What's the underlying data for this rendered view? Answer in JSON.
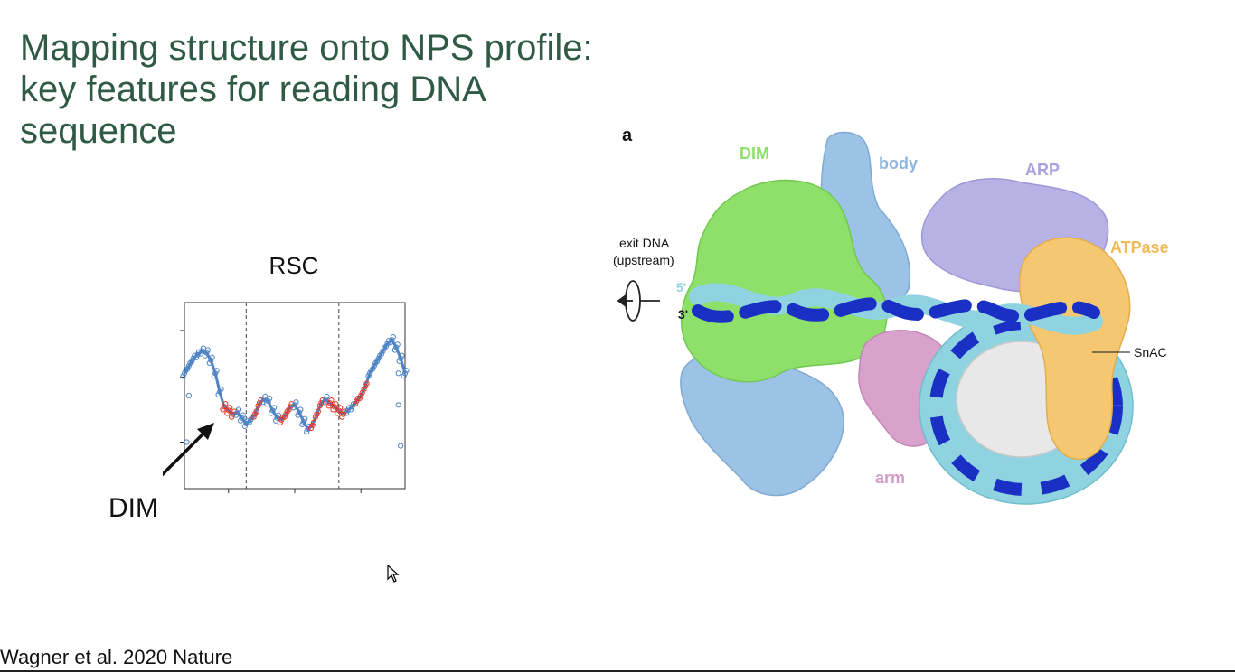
{
  "slide": {
    "title_lines": [
      "Mapping structure onto NPS profile:",
      "key features for reading DNA",
      "sequence"
    ],
    "citation": "Wagner et al. 2020 Nature"
  },
  "chart": {
    "title": "RSC",
    "annotation": "DIM"
  },
  "figure": {
    "panel_label": "a",
    "labels": {
      "dim": "DIM",
      "body": "body",
      "arp": "ARP",
      "atpase": "ATPase",
      "arm": "arm",
      "snac": "SnAC",
      "exit_dna_1": "exit DNA",
      "exit_dna_2": "(upstream)",
      "five_prime": "5'",
      "three_prime": "3'"
    },
    "colors": {
      "dim": "#8ee06a",
      "body": "#9cc3e6",
      "arp": "#b7b1e6",
      "atpase": "#f4c770",
      "arm": "#d8a2cc",
      "dna_dark": "#1a2fc4",
      "dna_light": "#8fd3e0",
      "core": "#e8e8e8"
    }
  },
  "chart_data": {
    "type": "scatter",
    "title": "RSC",
    "xlabel": "",
    "ylabel": "",
    "xlim": [
      0,
      100
    ],
    "ylim": [
      0,
      100
    ],
    "segments_marked": [
      [
        17,
        23
      ],
      [
        31,
        35
      ],
      [
        44,
        48
      ],
      [
        58,
        62
      ],
      [
        66,
        72
      ],
      [
        78,
        83
      ]
    ],
    "dashed_lines_x": [
      28,
      70
    ],
    "points_x": [
      0,
      2,
      4,
      6,
      8,
      10,
      12,
      14,
      16,
      18,
      20,
      22,
      24,
      26,
      28,
      30,
      32,
      34,
      36,
      38,
      40,
      42,
      44,
      46,
      48,
      50,
      52,
      54,
      56,
      58,
      60,
      62,
      64,
      66,
      68,
      70,
      72,
      74,
      76,
      78,
      80,
      82,
      84,
      86,
      88,
      90,
      92,
      94,
      96,
      98,
      100
    ],
    "points_y": [
      62,
      66,
      70,
      72,
      74,
      73,
      69,
      62,
      52,
      44,
      42,
      40,
      41,
      38,
      35,
      37,
      40,
      46,
      48,
      47,
      42,
      38,
      37,
      40,
      44,
      45,
      41,
      36,
      32,
      34,
      40,
      46,
      48,
      46,
      44,
      42,
      40,
      42,
      44,
      47,
      50,
      55,
      62,
      66,
      70,
      74,
      78,
      80,
      76,
      70,
      62
    ],
    "outliers": [
      {
        "x": 2,
        "y": 50
      },
      {
        "x": 1,
        "y": 25
      },
      {
        "x": 97,
        "y": 45
      },
      {
        "x": 98,
        "y": 23
      },
      {
        "x": 97,
        "y": 62
      }
    ]
  }
}
